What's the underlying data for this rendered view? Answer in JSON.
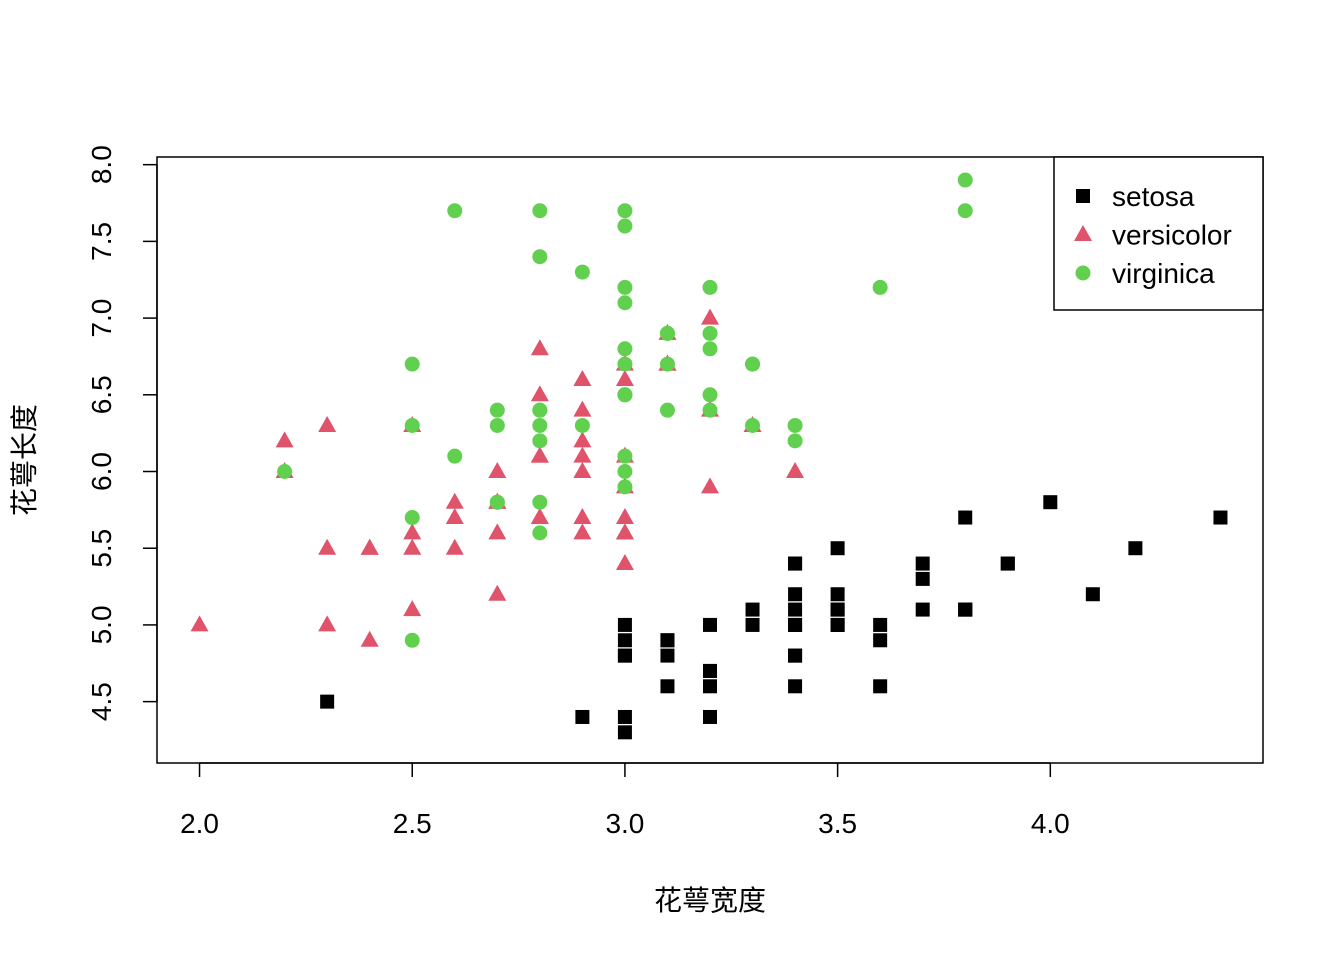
{
  "chart_data": {
    "type": "scatter",
    "title": "",
    "xlabel": "花萼宽度",
    "ylabel": "花萼长度",
    "xlim": [
      1.9,
      4.5
    ],
    "ylim": [
      4.1,
      8.05
    ],
    "x_ticks": [
      2.0,
      2.5,
      3.0,
      3.5,
      4.0
    ],
    "x_tick_labels": [
      "2.0",
      "2.5",
      "3.0",
      "3.5",
      "4.0"
    ],
    "y_ticks": [
      4.5,
      5.0,
      5.5,
      6.0,
      6.5,
      7.0,
      7.5,
      8.0
    ],
    "y_tick_labels": [
      "4.5",
      "5.0",
      "5.5",
      "6.0",
      "6.5",
      "7.0",
      "7.5",
      "8.0"
    ],
    "grid": false,
    "legend_position": "top-right",
    "series": [
      {
        "name": "setosa",
        "marker": "square",
        "color": "#000000",
        "points": [
          [
            3.5,
            5.1
          ],
          [
            3.0,
            4.9
          ],
          [
            3.2,
            4.7
          ],
          [
            3.1,
            4.6
          ],
          [
            3.6,
            5.0
          ],
          [
            3.9,
            5.4
          ],
          [
            3.4,
            4.6
          ],
          [
            3.4,
            5.0
          ],
          [
            2.9,
            4.4
          ],
          [
            3.1,
            4.9
          ],
          [
            3.7,
            5.4
          ],
          [
            3.4,
            4.8
          ],
          [
            3.0,
            4.8
          ],
          [
            3.0,
            4.3
          ],
          [
            4.0,
            5.8
          ],
          [
            4.4,
            5.7
          ],
          [
            3.9,
            5.4
          ],
          [
            3.5,
            5.1
          ],
          [
            3.8,
            5.7
          ],
          [
            3.8,
            5.1
          ],
          [
            3.4,
            5.4
          ],
          [
            3.7,
            5.1
          ],
          [
            3.6,
            4.6
          ],
          [
            3.3,
            5.1
          ],
          [
            3.4,
            4.8
          ],
          [
            3.0,
            5.0
          ],
          [
            3.4,
            5.0
          ],
          [
            3.5,
            5.2
          ],
          [
            3.4,
            5.2
          ],
          [
            3.2,
            4.7
          ],
          [
            3.1,
            4.8
          ],
          [
            3.4,
            5.4
          ],
          [
            4.1,
            5.2
          ],
          [
            4.2,
            5.5
          ],
          [
            3.1,
            4.9
          ],
          [
            3.2,
            5.0
          ],
          [
            3.5,
            5.5
          ],
          [
            3.6,
            4.9
          ],
          [
            3.0,
            4.4
          ],
          [
            3.4,
            5.1
          ],
          [
            3.5,
            5.0
          ],
          [
            2.3,
            4.5
          ],
          [
            3.2,
            4.4
          ],
          [
            3.5,
            5.0
          ],
          [
            3.8,
            5.1
          ],
          [
            3.0,
            4.8
          ],
          [
            3.8,
            5.1
          ],
          [
            3.2,
            4.6
          ],
          [
            3.7,
            5.3
          ],
          [
            3.3,
            5.0
          ]
        ]
      },
      {
        "name": "versicolor",
        "marker": "triangle",
        "color": "#DF536B",
        "points": [
          [
            3.2,
            7.0
          ],
          [
            3.2,
            6.4
          ],
          [
            3.1,
            6.9
          ],
          [
            2.3,
            5.5
          ],
          [
            2.8,
            6.5
          ],
          [
            2.8,
            5.7
          ],
          [
            3.3,
            6.3
          ],
          [
            2.4,
            4.9
          ],
          [
            2.9,
            6.6
          ],
          [
            2.7,
            5.2
          ],
          [
            2.0,
            5.0
          ],
          [
            3.0,
            5.9
          ],
          [
            2.2,
            6.0
          ],
          [
            2.9,
            6.1
          ],
          [
            2.9,
            5.6
          ],
          [
            3.1,
            6.7
          ],
          [
            3.0,
            5.6
          ],
          [
            2.7,
            5.8
          ],
          [
            2.2,
            6.2
          ],
          [
            2.5,
            5.6
          ],
          [
            3.2,
            5.9
          ],
          [
            2.8,
            6.1
          ],
          [
            2.5,
            6.3
          ],
          [
            2.8,
            6.1
          ],
          [
            2.9,
            6.4
          ],
          [
            3.0,
            6.6
          ],
          [
            2.8,
            6.8
          ],
          [
            3.0,
            6.7
          ],
          [
            2.9,
            6.0
          ],
          [
            2.6,
            5.7
          ],
          [
            2.4,
            5.5
          ],
          [
            2.4,
            5.5
          ],
          [
            2.7,
            5.8
          ],
          [
            2.7,
            6.0
          ],
          [
            3.0,
            5.4
          ],
          [
            3.4,
            6.0
          ],
          [
            3.1,
            6.7
          ],
          [
            2.3,
            6.3
          ],
          [
            3.0,
            5.6
          ],
          [
            2.5,
            5.5
          ],
          [
            2.6,
            5.5
          ],
          [
            3.0,
            6.1
          ],
          [
            2.6,
            5.8
          ],
          [
            2.3,
            5.0
          ],
          [
            2.7,
            5.6
          ],
          [
            3.0,
            5.7
          ],
          [
            2.9,
            5.7
          ],
          [
            2.9,
            6.2
          ],
          [
            2.5,
            5.1
          ],
          [
            2.8,
            5.7
          ]
        ]
      },
      {
        "name": "virginica",
        "marker": "circle",
        "color": "#61D04F",
        "points": [
          [
            3.3,
            6.3
          ],
          [
            2.7,
            5.8
          ],
          [
            3.0,
            7.1
          ],
          [
            2.9,
            6.3
          ],
          [
            3.0,
            6.5
          ],
          [
            3.0,
            7.6
          ],
          [
            2.5,
            4.9
          ],
          [
            2.9,
            7.3
          ],
          [
            2.5,
            6.7
          ],
          [
            3.6,
            7.2
          ],
          [
            3.2,
            6.5
          ],
          [
            2.7,
            6.4
          ],
          [
            3.0,
            6.8
          ],
          [
            2.5,
            5.7
          ],
          [
            2.8,
            5.8
          ],
          [
            3.2,
            6.4
          ],
          [
            3.0,
            6.5
          ],
          [
            3.8,
            7.7
          ],
          [
            2.6,
            7.7
          ],
          [
            2.2,
            6.0
          ],
          [
            3.2,
            6.9
          ],
          [
            2.8,
            5.6
          ],
          [
            2.8,
            7.7
          ],
          [
            2.7,
            6.3
          ],
          [
            3.3,
            6.7
          ],
          [
            3.2,
            7.2
          ],
          [
            2.8,
            6.2
          ],
          [
            3.0,
            6.1
          ],
          [
            2.8,
            6.4
          ],
          [
            3.0,
            7.2
          ],
          [
            2.8,
            7.4
          ],
          [
            3.8,
            7.9
          ],
          [
            2.8,
            6.4
          ],
          [
            2.8,
            6.3
          ],
          [
            2.6,
            6.1
          ],
          [
            3.0,
            7.7
          ],
          [
            3.4,
            6.3
          ],
          [
            3.1,
            6.4
          ],
          [
            3.0,
            6.0
          ],
          [
            3.1,
            6.9
          ],
          [
            3.1,
            6.7
          ],
          [
            3.1,
            6.9
          ],
          [
            2.7,
            5.8
          ],
          [
            3.2,
            6.8
          ],
          [
            3.3,
            6.7
          ],
          [
            3.0,
            6.7
          ],
          [
            2.5,
            6.3
          ],
          [
            3.0,
            6.5
          ],
          [
            3.4,
            6.2
          ],
          [
            3.0,
            5.9
          ]
        ]
      }
    ]
  }
}
